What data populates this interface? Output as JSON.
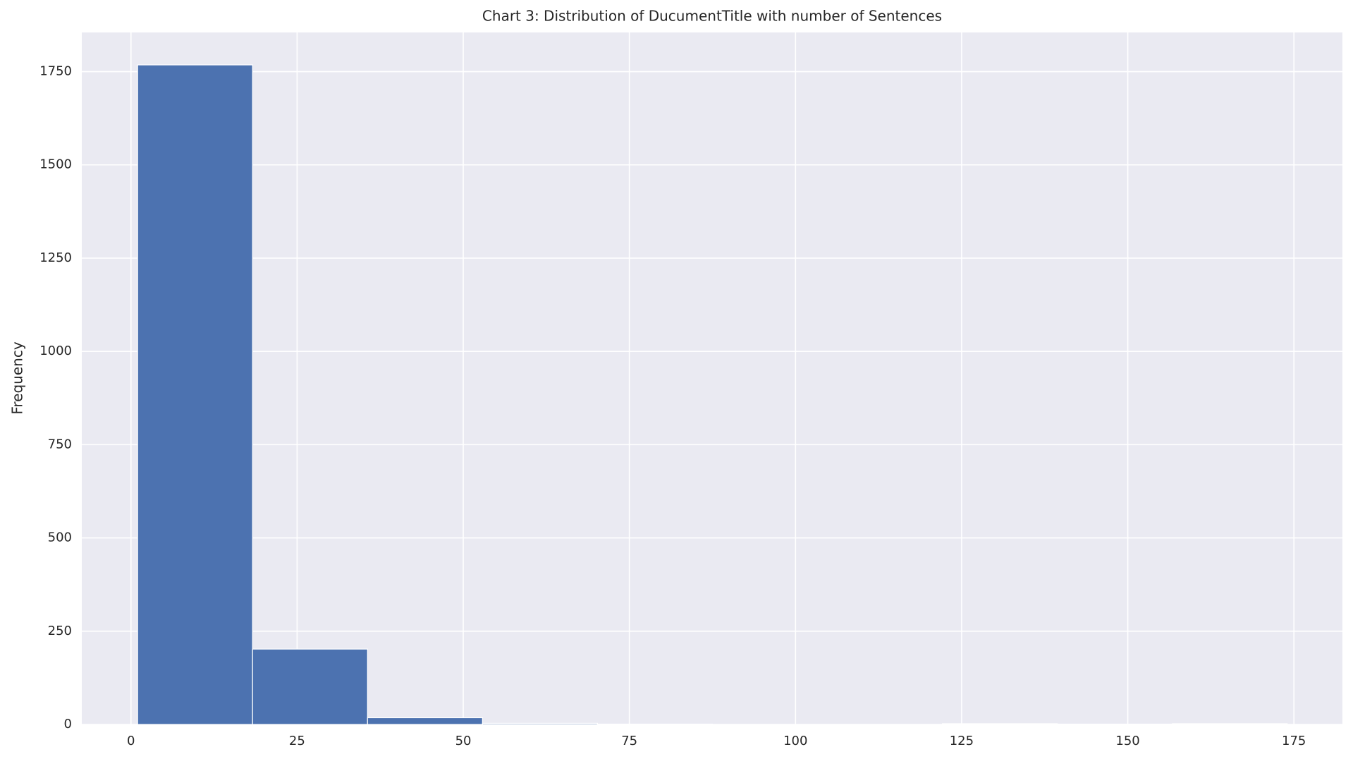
{
  "chart_data": {
    "type": "histogram",
    "title": "Chart 3: Distribution of DucumentTitle with number of Sentences",
    "y_label": "Frequency",
    "bins": [
      1,
      18.3,
      35.6,
      52.9,
      70.2,
      87.5,
      104.8,
      122.1,
      139.4,
      156.7,
      174
    ],
    "counts": [
      1768,
      202,
      18,
      3,
      1,
      0,
      0,
      2,
      1,
      2
    ],
    "color": "#4c72b0",
    "xlim": [
      -7.4,
      182.3
    ],
    "xticks": [
      0,
      25,
      50,
      75,
      100,
      125,
      150,
      175
    ],
    "ylim": [
      0,
      1855
    ],
    "yticks": [
      0,
      250,
      500,
      750,
      1000,
      1250,
      1500,
      1750
    ],
    "grid": true
  }
}
